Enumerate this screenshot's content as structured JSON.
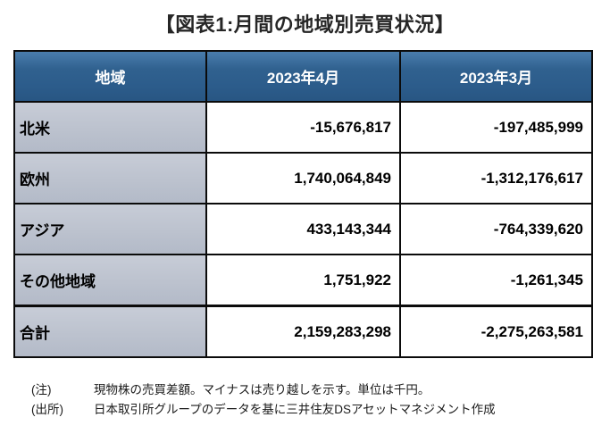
{
  "title": "【図表1:月間の地域別売買状況】",
  "colors": {
    "header_bg": "#30618f",
    "region_col_bg": "#bcc2ce",
    "border": "#0b0b0b",
    "header_text": "#ffffff"
  },
  "table": {
    "headers": {
      "region": "地域",
      "apr": "2023年4月",
      "mar": "2023年3月"
    },
    "rows": [
      {
        "region": "北米",
        "apr": "-15,676,817",
        "mar": "-197,485,999"
      },
      {
        "region": "欧州",
        "apr": "1,740,064,849",
        "mar": "-1,312,176,617"
      },
      {
        "region": "アジア",
        "apr": "433,143,344",
        "mar": "-764,339,620"
      },
      {
        "region": "その他地域",
        "apr": "1,751,922",
        "mar": "-1,261,345"
      },
      {
        "region": "合計",
        "apr": "2,159,283,298",
        "mar": "-2,275,263,581"
      }
    ]
  },
  "notes": [
    {
      "label": "(注)",
      "text": "現物株の売買差額。マイナスは売り越しを示す。単位は千円。"
    },
    {
      "label": "(出所)",
      "text": "日本取引所グループのデータを基に三井住友DSアセットマネジメント作成"
    }
  ],
  "chart_data": {
    "type": "table",
    "title": "【図表1:月間の地域別売買状況】",
    "columns": [
      "地域",
      "2023年4月",
      "2023年3月"
    ],
    "rows": [
      [
        "北米",
        -15676817,
        -197485999
      ],
      [
        "欧州",
        1740064849,
        -1312176617
      ],
      [
        "アジア",
        433143344,
        -764339620
      ],
      [
        "その他地域",
        1751922,
        -1261345
      ],
      [
        "合計",
        2159283298,
        -2275263581
      ]
    ],
    "unit": "千円",
    "note": "現物株の売買差額。マイナスは売り越しを示す。単位は千円。",
    "source": "日本取引所グループのデータを基に三井住友DSアセットマネジメント作成"
  }
}
